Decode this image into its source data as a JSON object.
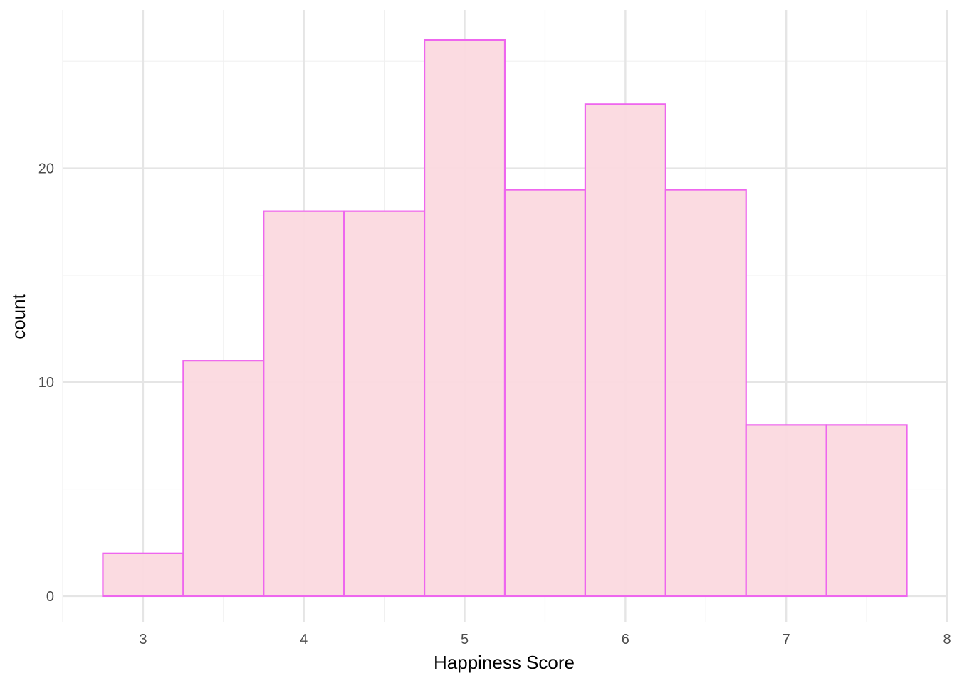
{
  "chart_data": {
    "type": "bar",
    "subtype": "histogram",
    "title": "",
    "xlabel": "Happiness Score",
    "ylabel": "count",
    "xlim": [
      2.5,
      8.0
    ],
    "ylim": [
      -1.2,
      27.4
    ],
    "x_ticks": [
      3,
      4,
      5,
      6,
      7,
      8
    ],
    "y_ticks": [
      0,
      10,
      20
    ],
    "bin_width": 0.5,
    "bins": [
      {
        "x0": 2.75,
        "x1": 3.25,
        "count": 2
      },
      {
        "x0": 3.25,
        "x1": 3.75,
        "count": 11
      },
      {
        "x0": 3.75,
        "x1": 4.25,
        "count": 18
      },
      {
        "x0": 4.25,
        "x1": 4.75,
        "count": 18
      },
      {
        "x0": 4.75,
        "x1": 5.25,
        "count": 26
      },
      {
        "x0": 5.25,
        "x1": 5.75,
        "count": 19
      },
      {
        "x0": 5.75,
        "x1": 6.25,
        "count": 23
      },
      {
        "x0": 6.25,
        "x1": 6.75,
        "count": 19
      },
      {
        "x0": 6.75,
        "x1": 7.25,
        "count": 8
      },
      {
        "x0": 7.25,
        "x1": 7.75,
        "count": 8
      }
    ],
    "grid": true,
    "legend": "none",
    "colors": {
      "bar_fill": "#fbd9df",
      "bar_outline": "#ee66ee",
      "grid_major": "#e5e5e5",
      "grid_minor": "#f0f0f0"
    }
  }
}
